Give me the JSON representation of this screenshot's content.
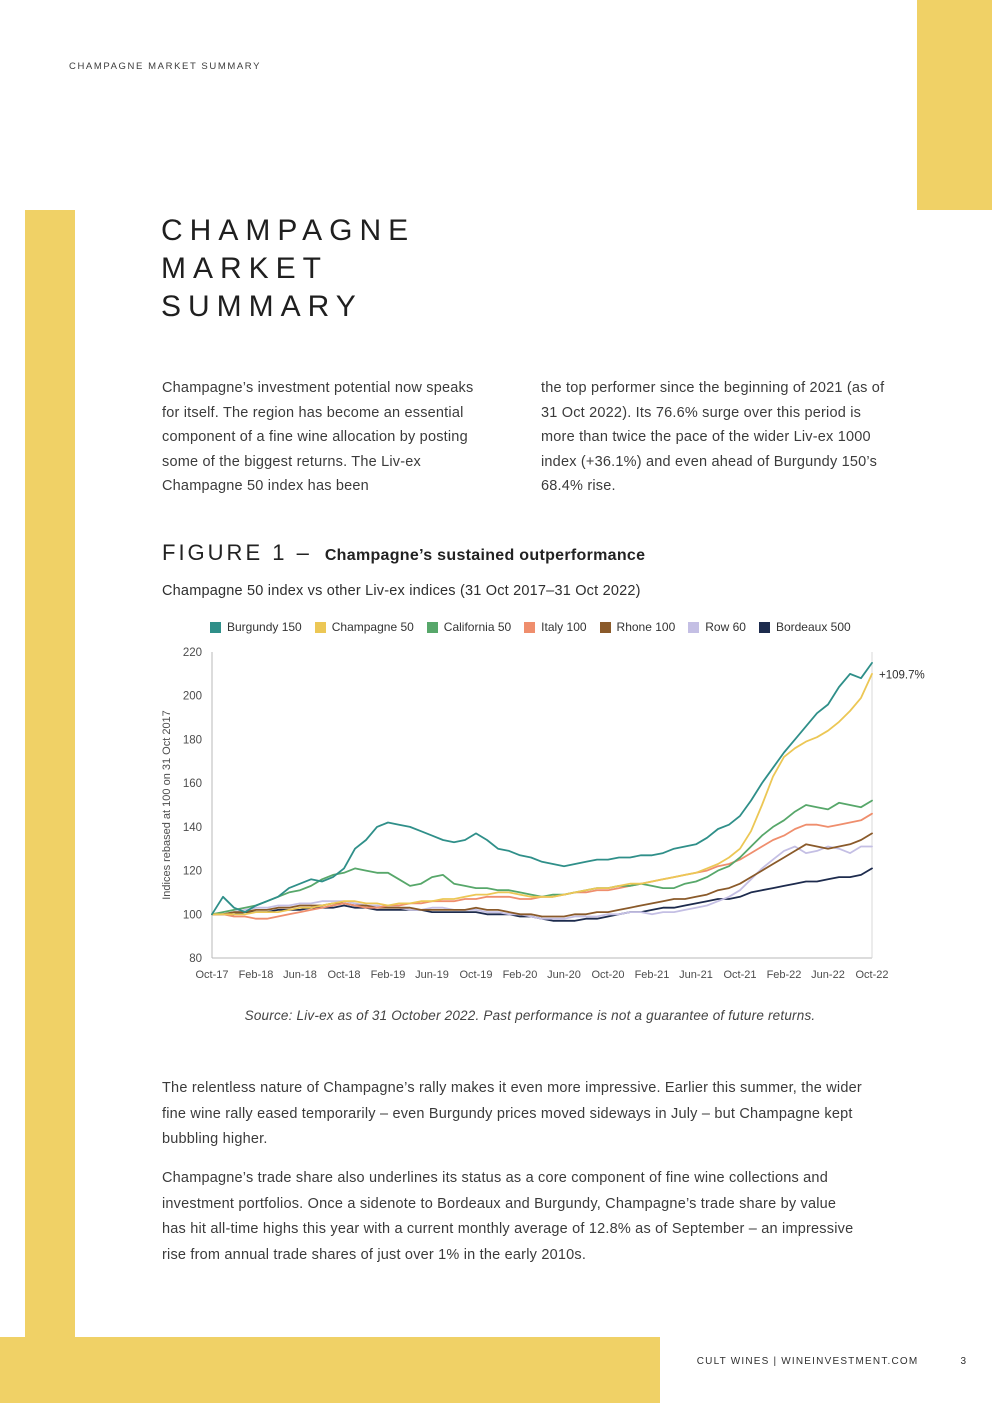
{
  "page": {
    "eyebrow": "CHAMPAGNE MARKET SUMMARY",
    "title_lines": [
      "CHAMPAGNE",
      "MARKET",
      "SUMMARY"
    ],
    "intro_col1": "Champagne’s investment potential now speaks for itself. The region has become an essential component of a fine wine allocation by posting some of the biggest returns. The Liv-ex Champagne 50 index has been",
    "intro_col2": "the top performer since the beginning of 2021 (as of 31 Oct 2022). Its 76.6% surge over this period is more than twice the pace of the wider Liv-ex 1000 index (+36.1%) and even ahead of Burgundy 150’s 68.4% rise.",
    "figure_label": "FIGURE 1 –",
    "figure_title": "Champagne’s sustained outperformance",
    "figure_subtitle": "Champagne 50 index vs other Liv-ex indices (31 Oct 2017–31 Oct 2022)",
    "source_note": "Source: Liv-ex as of 31 October 2022. Past performance is not a guarantee of future returns.",
    "para1": "The relentless nature of Champagne’s rally makes it even more impressive. Earlier this summer, the wider fine wine rally eased temporarily – even Burgundy prices moved sideways in July – but Champagne kept bubbling higher.",
    "para2": "Champagne’s trade share also underlines its status as a core component of fine wine collections and investment portfolios. Once a sidenote to Bordeaux and Burgundy, Champagne’s trade share by value has hit all-time highs this year with a current monthly average of 12.8% as of September – an impressive rise from annual trade shares of just over 1% in the early 2010s.",
    "footer": {
      "brand": "CULT WINES | WINEINVESTMENT.COM",
      "page_number": "3"
    },
    "accent_color": "#F0D166"
  },
  "chart_data": {
    "type": "line",
    "title": "Champagne 50 index vs other Liv-ex indices (31 Oct 2017–31 Oct 2022)",
    "ylabel": "Indices rebased at 100 on 31 Oct 2017",
    "ylim": [
      80,
      220
    ],
    "yticks": [
      80,
      100,
      120,
      140,
      160,
      180,
      200,
      220
    ],
    "x_frequency": "monthly",
    "x_tick_labels": [
      "Oct-17",
      "Feb-18",
      "Jun-18",
      "Oct-18",
      "Feb-19",
      "Jun-19",
      "Oct-19",
      "Feb-20",
      "Jun-20",
      "Oct-20",
      "Feb-21",
      "Jun-21",
      "Oct-21",
      "Feb-22",
      "Jun-22",
      "Oct-22"
    ],
    "annotation": {
      "text": "+109.7%",
      "value": 209.7
    },
    "legend_position": "top",
    "grid": false,
    "series": [
      {
        "name": "Burgundy 150",
        "color": "#2F8F89",
        "values": [
          100,
          108,
          103,
          101,
          104,
          106,
          108,
          112,
          114,
          116,
          115,
          117,
          121,
          130,
          134,
          140,
          142,
          141,
          140,
          138,
          136,
          134,
          133,
          134,
          137,
          134,
          130,
          129,
          127,
          126,
          124,
          123,
          122,
          123,
          124,
          125,
          125,
          126,
          126,
          127,
          127,
          128,
          130,
          131,
          132,
          135,
          139,
          141,
          145,
          152,
          160,
          167,
          174,
          180,
          186,
          192,
          196,
          204,
          210,
          208,
          215
        ]
      },
      {
        "name": "Champagne 50",
        "color": "#ECC755",
        "values": [
          100,
          100,
          100,
          100,
          101,
          101,
          101,
          102,
          103,
          103,
          104,
          105,
          106,
          106,
          105,
          105,
          104,
          105,
          105,
          106,
          106,
          107,
          107,
          108,
          109,
          109,
          110,
          110,
          109,
          108,
          108,
          108,
          109,
          110,
          111,
          112,
          112,
          113,
          114,
          114,
          115,
          116,
          117,
          118,
          119,
          121,
          123,
          126,
          130,
          138,
          150,
          163,
          172,
          176,
          179,
          181,
          184,
          188,
          193,
          199,
          210
        ]
      },
      {
        "name": "California 50",
        "color": "#57A76A",
        "values": [
          100,
          101,
          102,
          103,
          104,
          106,
          108,
          110,
          111,
          113,
          116,
          118,
          119,
          121,
          120,
          119,
          119,
          116,
          113,
          114,
          117,
          118,
          114,
          113,
          112,
          112,
          111,
          111,
          110,
          109,
          108,
          109,
          109,
          110,
          111,
          112,
          112,
          113,
          113,
          114,
          113,
          112,
          112,
          114,
          115,
          117,
          120,
          122,
          126,
          131,
          136,
          140,
          143,
          147,
          150,
          149,
          148,
          151,
          150,
          149,
          152
        ]
      },
      {
        "name": "Italy 100",
        "color": "#EF8E6D",
        "values": [
          100,
          100,
          99,
          99,
          98,
          98,
          99,
          100,
          101,
          102,
          103,
          104,
          105,
          104,
          103,
          103,
          104,
          104,
          105,
          105,
          106,
          106,
          106,
          107,
          107,
          108,
          108,
          108,
          107,
          107,
          108,
          108,
          109,
          110,
          110,
          111,
          111,
          112,
          113,
          114,
          115,
          116,
          117,
          118,
          119,
          120,
          122,
          123,
          125,
          128,
          131,
          134,
          136,
          139,
          141,
          141,
          140,
          141,
          142,
          143,
          146
        ]
      },
      {
        "name": "Rhone 100",
        "color": "#8A5A2A",
        "values": [
          100,
          100,
          101,
          101,
          102,
          102,
          103,
          103,
          104,
          104,
          104,
          105,
          105,
          104,
          104,
          103,
          103,
          103,
          103,
          102,
          102,
          102,
          102,
          102,
          103,
          102,
          102,
          101,
          100,
          100,
          99,
          99,
          99,
          100,
          100,
          101,
          101,
          102,
          103,
          104,
          105,
          106,
          107,
          107,
          108,
          109,
          111,
          112,
          114,
          117,
          120,
          123,
          126,
          129,
          132,
          131,
          130,
          131,
          132,
          134,
          137
        ]
      },
      {
        "name": "Row 60",
        "color": "#C4BFE4",
        "values": [
          100,
          100,
          101,
          102,
          103,
          103,
          104,
          104,
          105,
          105,
          106,
          106,
          106,
          105,
          104,
          104,
          103,
          103,
          102,
          102,
          103,
          103,
          102,
          102,
          102,
          101,
          101,
          100,
          100,
          99,
          98,
          98,
          98,
          99,
          99,
          99,
          100,
          100,
          101,
          101,
          100,
          101,
          101,
          102,
          103,
          104,
          106,
          108,
          111,
          116,
          121,
          125,
          129,
          131,
          128,
          129,
          131,
          130,
          128,
          131,
          131
        ]
      },
      {
        "name": "Bordeaux 500",
        "color": "#1D2B4D",
        "values": [
          100,
          100,
          100,
          101,
          101,
          101,
          102,
          102,
          102,
          103,
          103,
          103,
          104,
          103,
          103,
          102,
          102,
          102,
          102,
          102,
          101,
          101,
          101,
          101,
          101,
          100,
          100,
          100,
          99,
          99,
          98,
          97,
          97,
          97,
          98,
          98,
          99,
          100,
          101,
          101,
          102,
          103,
          103,
          104,
          105,
          106,
          107,
          107,
          108,
          110,
          111,
          112,
          113,
          114,
          115,
          115,
          116,
          117,
          117,
          118,
          121
        ]
      }
    ]
  }
}
